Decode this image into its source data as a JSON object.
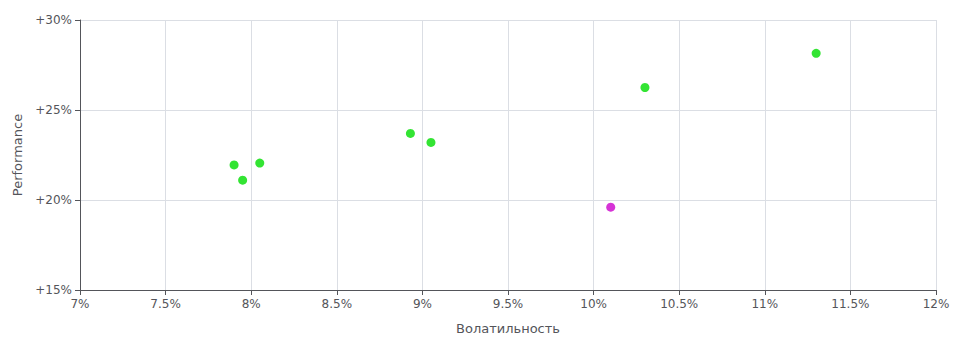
{
  "chart_data": {
    "type": "scatter",
    "xlabel": "Волатильность",
    "ylabel": "Performance",
    "xlim": [
      0.07,
      0.12
    ],
    "ylim": [
      0.15,
      0.3
    ],
    "xticks": [
      {
        "value": 0.07,
        "label": "7%"
      },
      {
        "value": 0.075,
        "label": "7.5%"
      },
      {
        "value": 0.08,
        "label": "8%"
      },
      {
        "value": 0.085,
        "label": "8.5%"
      },
      {
        "value": 0.09,
        "label": "9%"
      },
      {
        "value": 0.095,
        "label": "9.5%"
      },
      {
        "value": 0.1,
        "label": "10%"
      },
      {
        "value": 0.105,
        "label": "10.5%"
      },
      {
        "value": 0.11,
        "label": "11%"
      },
      {
        "value": 0.115,
        "label": "11.5%"
      },
      {
        "value": 0.12,
        "label": "12%"
      }
    ],
    "yticks": [
      {
        "value": 0.15,
        "label": "+15%"
      },
      {
        "value": 0.2,
        "label": "+20%"
      },
      {
        "value": 0.25,
        "label": "+25%"
      },
      {
        "value": 0.3,
        "label": "+30%"
      }
    ],
    "grid": true,
    "series": [
      {
        "color": "#00dd00",
        "x": [
          0.079,
          0.0805,
          0.0795,
          0.0893,
          0.0905,
          0.103,
          0.113
        ],
        "values": [
          0.2195,
          0.2205,
          0.211,
          0.237,
          0.232,
          0.2625,
          0.2815
        ]
      },
      {
        "color": "#cc00cc",
        "x": [
          0.101
        ],
        "values": [
          0.196
        ]
      }
    ]
  }
}
